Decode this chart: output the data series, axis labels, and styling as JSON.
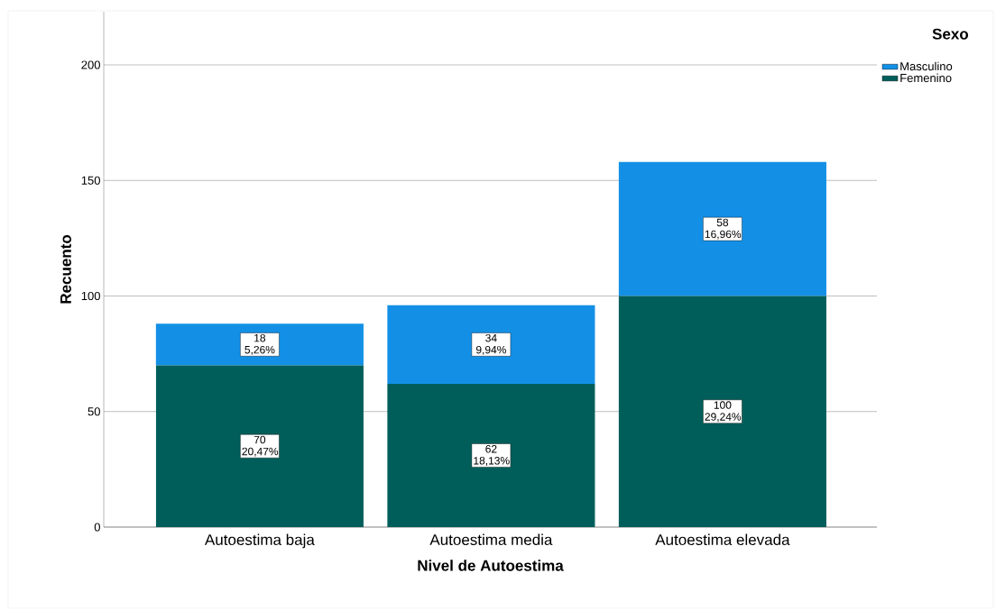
{
  "chart_data": {
    "type": "bar",
    "stacked": true,
    "xlabel": "Nivel de Autoestima",
    "ylabel": "Recuento",
    "legend_title": "Sexo",
    "categories": [
      "Autoestima baja",
      "Autoestima media",
      "Autoestima elevada"
    ],
    "series": [
      {
        "name": "Femenino",
        "color": "#005e5a",
        "values": [
          70,
          62,
          100
        ],
        "value_labels": [
          "70 20,47%",
          "62 18,13%",
          "100 29,24%"
        ]
      },
      {
        "name": "Masculino",
        "color": "#1390e6",
        "values": [
          18,
          34,
          58
        ],
        "value_labels": [
          "18 5,26%",
          "34 9,94%",
          "58 16,96%"
        ]
      }
    ],
    "ylim": [
      0,
      223
    ],
    "yticks": [
      0,
      50,
      100,
      150,
      200
    ],
    "grid": "y",
    "legend": "top right"
  }
}
